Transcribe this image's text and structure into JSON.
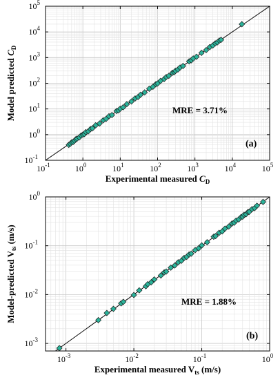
{
  "chart_data": [
    {
      "type": "scatter",
      "panel_label": "(a)",
      "annotation": "MRE = 3.71%",
      "xlabel": {
        "prefix": "Experimental measured ",
        "symbol": "C",
        "sub": "D",
        "suffix": ""
      },
      "ylabel": {
        "prefix": "Model predicted ",
        "symbol": "C",
        "sub": "D",
        "suffix": ""
      },
      "xscale": "log",
      "yscale": "log",
      "xlim": [
        0.1,
        100000
      ],
      "ylim": [
        0.1,
        100000
      ],
      "tick_exponents": [
        -1,
        0,
        1,
        2,
        3,
        4,
        5
      ],
      "grid": true,
      "reference_line": "y = x",
      "marker": "diamond",
      "marker_color": "#2bb39a",
      "x": [
        0.42,
        0.46,
        0.5,
        0.55,
        0.6,
        0.65,
        0.7,
        0.8,
        0.9,
        1.0,
        1.1,
        1.2,
        1.4,
        1.6,
        1.8,
        2.2,
        2.8,
        3.5,
        4.2,
        5,
        6,
        8,
        9,
        10,
        12,
        15,
        20,
        25,
        30,
        35,
        45,
        60,
        75,
        90,
        100,
        120,
        150,
        170,
        200,
        250,
        280,
        300,
        350,
        400,
        480,
        700,
        800,
        900,
        1100,
        1500,
        2000,
        2500,
        3000,
        3500,
        4000,
        4500,
        5000,
        18000
      ],
      "y": [
        0.4,
        0.44,
        0.5,
        0.52,
        0.58,
        0.66,
        0.7,
        0.78,
        0.92,
        1.0,
        1.05,
        1.25,
        1.35,
        1.65,
        1.75,
        2.3,
        2.7,
        3.6,
        4.1,
        5.2,
        5.8,
        8.3,
        8.8,
        10.2,
        11.6,
        15.4,
        19.5,
        25.6,
        29.2,
        35.8,
        44,
        61,
        73,
        92,
        98,
        123,
        146,
        174,
        195,
        256,
        272,
        305,
        342,
        410,
        470,
        715,
        785,
        920,
        1080,
        1530,
        1960,
        2560,
        2940,
        3580,
        3920,
        4600,
        4900,
        20000
      ]
    },
    {
      "type": "scatter",
      "panel_label": "(b)",
      "annotation": "MRE = 1.88%",
      "xlabel": {
        "prefix": "Experimental measured V",
        "symbol": "",
        "sub": "ts",
        "suffix": " (m/s)"
      },
      "ylabel": {
        "prefix": "Model-predicted V",
        "symbol": "",
        "sub": "ts",
        "suffix": " (m/s)"
      },
      "xscale": "log",
      "yscale": "log",
      "xlim": [
        0.0005,
        1
      ],
      "ylim": [
        0.0007,
        1
      ],
      "tick_exponents": [
        -3,
        -2,
        -1,
        0
      ],
      "grid": true,
      "reference_line": "y = x",
      "marker": "diamond",
      "marker_color": "#2bb39a",
      "x": [
        0.0008,
        0.003,
        0.004,
        0.005,
        0.0065,
        0.007,
        0.01,
        0.012,
        0.015,
        0.016,
        0.018,
        0.02,
        0.025,
        0.028,
        0.03,
        0.035,
        0.04,
        0.045,
        0.05,
        0.055,
        0.06,
        0.065,
        0.07,
        0.08,
        0.09,
        0.1,
        0.12,
        0.15,
        0.16,
        0.18,
        0.2,
        0.22,
        0.25,
        0.28,
        0.3,
        0.32,
        0.35,
        0.38,
        0.4,
        0.42,
        0.45,
        0.48,
        0.5,
        0.55,
        0.6,
        0.65,
        0.8
      ],
      "y": [
        0.0008,
        0.003,
        0.0042,
        0.0051,
        0.0066,
        0.0071,
        0.0098,
        0.0122,
        0.0148,
        0.0163,
        0.0178,
        0.0204,
        0.0246,
        0.0285,
        0.0296,
        0.0356,
        0.0394,
        0.0458,
        0.0492,
        0.0561,
        0.0592,
        0.0662,
        0.0688,
        0.0815,
        0.0886,
        0.102,
        0.118,
        0.153,
        0.158,
        0.184,
        0.197,
        0.224,
        0.247,
        0.286,
        0.296,
        0.327,
        0.345,
        0.388,
        0.394,
        0.43,
        0.443,
        0.49,
        0.495,
        0.56,
        0.59,
        0.66,
        0.79
      ]
    }
  ]
}
